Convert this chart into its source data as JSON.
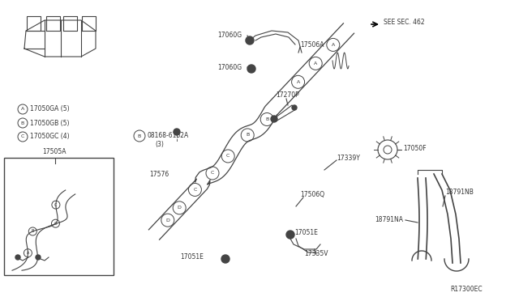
{
  "bg_color": "#ffffff",
  "line_color": "#444444",
  "text_color": "#333333",
  "ref_code": "R17300EC",
  "see_sec": "SEE SEC. 462",
  "figsize": [
    6.4,
    3.72
  ],
  "dpi": 100,
  "labels_A": "A",
  "labels_B": "B",
  "labels_C": "C",
  "labels_D": "D"
}
